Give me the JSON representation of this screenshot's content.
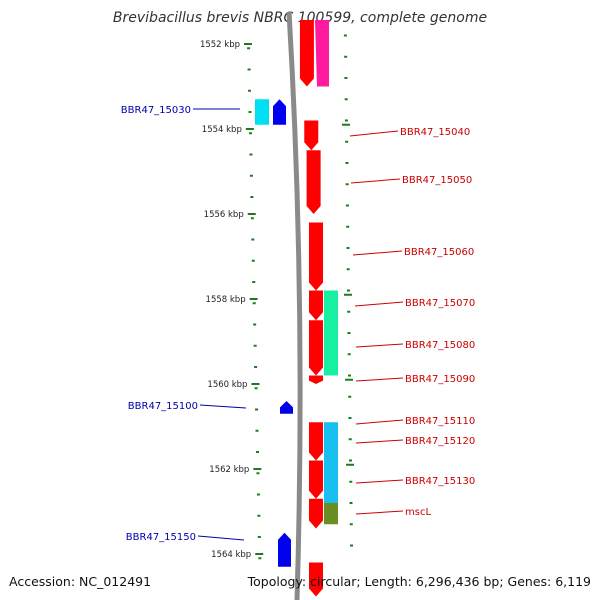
{
  "title": "Brevibacillus brevis NBRC 100599, complete genome",
  "footer": {
    "accession": "Accession: NC_012491",
    "summary": "Topology: circular; Length: 6,296,436 bp; Genes: 6,119"
  },
  "colors": {
    "tick": "#1f7a1f",
    "forward_gene": "#ff0000",
    "reverse_gene": "#0000ee",
    "cyan_block": "#00e0f0",
    "magenta_block": "#ff1aa0",
    "spring_green_block": "#16f0a0",
    "sky_block": "#18c0f0",
    "olive_block": "#6b8e23",
    "label_forward": "#cc0000",
    "label_reverse": "#0000aa"
  },
  "axis": {
    "kbp_labels": [
      "1552 kbp",
      "1554 kbp",
      "1556 kbp",
      "1558 kbp",
      "1560 kbp",
      "1562 kbp",
      "1564 kbp"
    ]
  },
  "genes_forward": [
    {
      "name": "",
      "start_kbp": 1551.2,
      "end_kbp": 1553.0
    },
    {
      "name": "BBR47_15040",
      "start_kbp": 1553.8,
      "end_kbp": 1554.5
    },
    {
      "name": "BBR47_15050",
      "start_kbp": 1554.5,
      "end_kbp": 1556.0
    },
    {
      "name": "BBR47_15060",
      "start_kbp": 1556.2,
      "end_kbp": 1557.8
    },
    {
      "name": "BBR47_15070",
      "start_kbp": 1557.8,
      "end_kbp": 1558.5
    },
    {
      "name": "BBR47_15080",
      "start_kbp": 1558.5,
      "end_kbp": 1559.8
    },
    {
      "name": "BBR47_15090",
      "start_kbp": 1559.8,
      "end_kbp": 1560.0
    },
    {
      "name": "BBR47_15110",
      "start_kbp": 1560.9,
      "end_kbp": 1561.8
    },
    {
      "name": "BBR47_15120",
      "start_kbp": 1561.8,
      "end_kbp": 1562.7
    },
    {
      "name": "BBR47_15130",
      "start_kbp": 1562.7,
      "end_kbp": 1563.4
    },
    {
      "name": "",
      "start_kbp": 1564.2,
      "end_kbp": 1565.0
    }
  ],
  "genes_reverse": [
    {
      "name": "BBR47_15030",
      "start_kbp": 1553.3,
      "end_kbp": 1553.9
    },
    {
      "name": "BBR47_15100",
      "start_kbp": 1560.4,
      "end_kbp": 1560.7
    },
    {
      "name": "BBR47_15150",
      "start_kbp": 1563.5,
      "end_kbp": 1564.3
    }
  ],
  "feature_blocks": [
    {
      "name": "",
      "color_key": "magenta_block",
      "start_kbp": 1551.2,
      "end_kbp": 1553.0
    },
    {
      "name": "",
      "color_key": "cyan_block",
      "start_kbp": 1553.3,
      "end_kbp": 1553.9
    },
    {
      "name": "",
      "color_key": "spring_green_block",
      "start_kbp": 1557.8,
      "end_kbp": 1559.8
    },
    {
      "name": "",
      "color_key": "sky_block",
      "start_kbp": 1560.9,
      "end_kbp": 1562.8
    },
    {
      "name": "mscL",
      "color_key": "olive_block",
      "start_kbp": 1562.8,
      "end_kbp": 1563.3
    }
  ]
}
